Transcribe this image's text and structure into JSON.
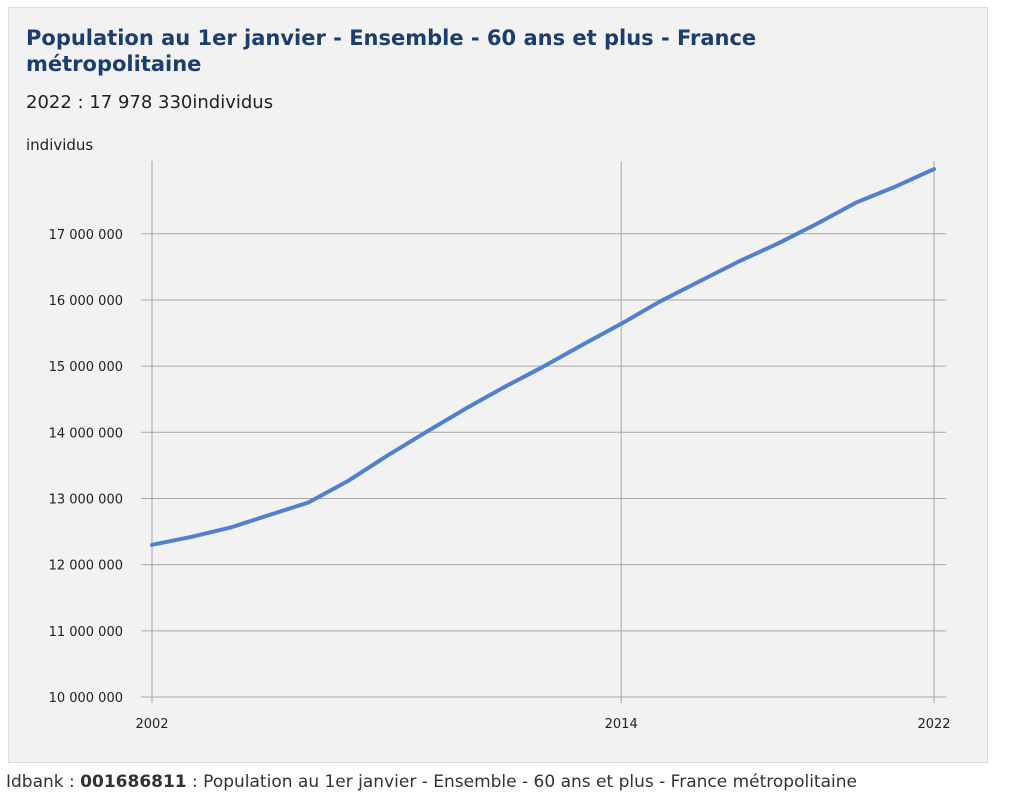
{
  "header": {
    "title": "Population au 1er janvier - Ensemble - 60 ans et plus - France métropolitaine",
    "subtitle": "2022 : 17 978 330individus"
  },
  "footer": {
    "idbank_label": "Idbank :",
    "idbank_value": "001686811",
    "description": ": Population au 1er janvier - Ensemble - 60 ans et plus - France métropolitaine"
  },
  "colors": {
    "line": "#4f81cf",
    "title": "#1a3e6f",
    "grid": "#a8a8a8",
    "background": "#f2f2f2"
  },
  "chart_data": {
    "type": "line",
    "title": "Population au 1er janvier - Ensemble - 60 ans et plus - France métropolitaine",
    "ylabel": "individus",
    "xlabel": "",
    "ylim": [
      10000000,
      18100000
    ],
    "xlim": [
      2002,
      2022
    ],
    "x_ticks": [
      2002,
      2014,
      2022
    ],
    "x_tick_labels": [
      "2002",
      "2014",
      "2022"
    ],
    "y_ticks": [
      10000000,
      11000000,
      12000000,
      13000000,
      14000000,
      15000000,
      16000000,
      17000000
    ],
    "y_tick_labels": [
      "10 000 000",
      "11 000 000",
      "12 000 000",
      "13 000 000",
      "14 000 000",
      "15 000 000",
      "16 000 000",
      "17 000 000"
    ],
    "grid": true,
    "series": [
      {
        "x": [
          2002,
          2003,
          2004,
          2005,
          2006,
          2007,
          2008,
          2009,
          2010,
          2011,
          2012,
          2013,
          2014,
          2015,
          2016,
          2017,
          2018,
          2019,
          2020,
          2021,
          2022
        ],
        "values": [
          12300000,
          12420000,
          12560000,
          12750000,
          12940000,
          13260000,
          13640000,
          14000000,
          14350000,
          14680000,
          14990000,
          15320000,
          15640000,
          15980000,
          16280000,
          16580000,
          16850000,
          17150000,
          17470000,
          17710000,
          17978330
        ]
      }
    ]
  }
}
